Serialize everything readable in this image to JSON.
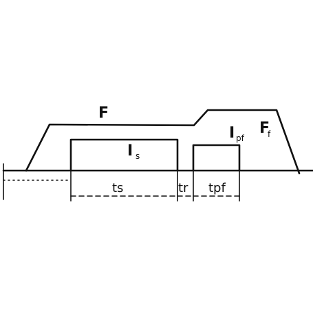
{
  "diagram": {
    "labels": {
      "force": "F",
      "force_final": "F",
      "force_final_sub": "f",
      "current_squeeze": "I",
      "current_squeeze_sub": "s",
      "current_postflow": "I",
      "current_postflow_sub": "pf",
      "time_squeeze": "ts",
      "time_rise": "tr",
      "time_postflow": "tpf"
    },
    "colors": {
      "ink": "#111111",
      "background": "#ffffff"
    }
  }
}
